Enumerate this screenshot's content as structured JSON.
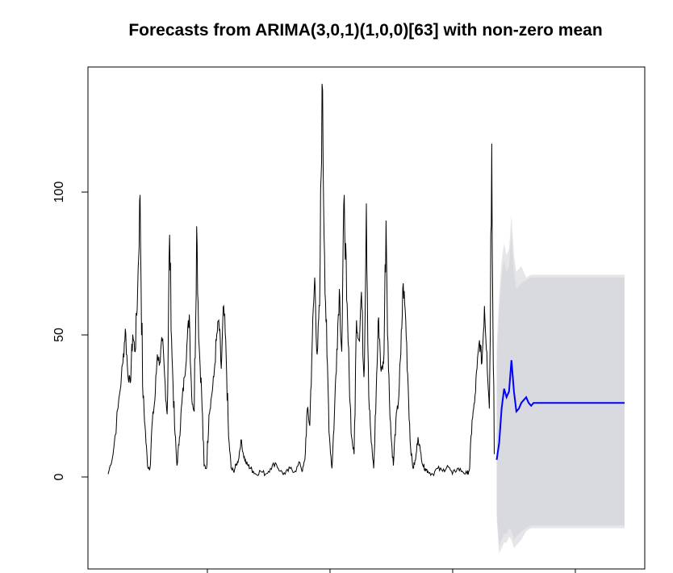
{
  "chart_data": {
    "type": "line",
    "title": "Forecasts from ARIMA(3,0,1)(1,0,0)[63] with non-zero mean",
    "xlabel": "",
    "ylabel": "",
    "ylim": [
      -25,
      140
    ],
    "y_ticks": [
      0,
      50,
      100
    ],
    "y_tick_labels": [
      "0",
      "50",
      "100"
    ],
    "x_tick_count": 4,
    "grid": false,
    "legend": "none",
    "colors": {
      "history": "#000000",
      "forecast": "#0000ff",
      "interval": "#d9dae0",
      "interval_outer": "#e6e6e8"
    },
    "history_series": {
      "name": "",
      "description_points": [
        [
          0,
          1
        ],
        [
          2,
          8
        ],
        [
          4,
          24
        ],
        [
          6,
          40
        ],
        [
          7,
          52
        ],
        [
          8,
          36
        ],
        [
          9,
          33
        ],
        [
          10,
          50
        ],
        [
          11,
          44
        ],
        [
          12,
          66
        ],
        [
          13,
          99
        ],
        [
          14,
          32
        ],
        [
          15,
          18
        ],
        [
          16,
          4
        ],
        [
          17,
          3
        ],
        [
          18,
          20
        ],
        [
          19,
          27
        ],
        [
          20,
          43
        ],
        [
          21,
          40
        ],
        [
          22,
          48
        ],
        [
          23,
          35
        ],
        [
          24,
          22
        ],
        [
          25,
          85
        ],
        [
          26,
          42
        ],
        [
          27,
          18
        ],
        [
          28,
          4
        ],
        [
          29,
          14
        ],
        [
          30,
          26
        ],
        [
          31,
          35
        ],
        [
          32,
          46
        ],
        [
          33,
          57
        ],
        [
          34,
          28
        ],
        [
          35,
          23
        ],
        [
          36,
          88
        ],
        [
          37,
          46
        ],
        [
          38,
          30
        ],
        [
          39,
          4
        ],
        [
          40,
          3
        ],
        [
          41,
          22
        ],
        [
          42,
          28
        ],
        [
          43,
          35
        ],
        [
          44,
          48
        ],
        [
          45,
          55
        ],
        [
          46,
          38
        ],
        [
          47,
          60
        ],
        [
          48,
          42
        ],
        [
          49,
          14
        ],
        [
          50,
          3
        ],
        [
          51,
          2
        ],
        [
          52,
          4
        ],
        [
          53,
          6
        ],
        [
          54,
          13
        ],
        [
          55,
          8
        ],
        [
          56,
          5
        ],
        [
          57,
          4
        ],
        [
          58,
          3
        ],
        [
          59,
          2
        ],
        [
          60,
          1
        ],
        [
          62,
          2
        ],
        [
          64,
          1
        ],
        [
          66,
          3
        ],
        [
          68,
          5
        ],
        [
          70,
          2
        ],
        [
          72,
          1
        ],
        [
          74,
          3
        ],
        [
          76,
          2
        ],
        [
          78,
          5
        ],
        [
          79,
          2
        ],
        [
          80,
          6
        ],
        [
          81,
          24
        ],
        [
          82,
          18
        ],
        [
          83,
          48
        ],
        [
          84,
          70
        ],
        [
          85,
          43
        ],
        [
          86,
          60
        ],
        [
          87,
          138
        ],
        [
          88,
          78
        ],
        [
          89,
          42
        ],
        [
          90,
          14
        ],
        [
          91,
          3
        ],
        [
          92,
          22
        ],
        [
          93,
          45
        ],
        [
          94,
          66
        ],
        [
          95,
          44
        ],
        [
          96,
          99
        ],
        [
          97,
          62
        ],
        [
          98,
          36
        ],
        [
          99,
          14
        ],
        [
          100,
          8
        ],
        [
          101,
          55
        ],
        [
          102,
          48
        ],
        [
          103,
          65
        ],
        [
          104,
          35
        ],
        [
          105,
          96
        ],
        [
          106,
          28
        ],
        [
          107,
          12
        ],
        [
          108,
          3
        ],
        [
          109,
          30
        ],
        [
          110,
          56
        ],
        [
          111,
          37
        ],
        [
          112,
          40
        ],
        [
          113,
          90
        ],
        [
          114,
          38
        ],
        [
          115,
          15
        ],
        [
          116,
          4
        ],
        [
          117,
          20
        ],
        [
          118,
          26
        ],
        [
          119,
          43
        ],
        [
          120,
          68
        ],
        [
          121,
          55
        ],
        [
          122,
          32
        ],
        [
          123,
          10
        ],
        [
          124,
          3
        ],
        [
          125,
          6
        ],
        [
          126,
          14
        ],
        [
          127,
          9
        ],
        [
          128,
          4
        ],
        [
          129,
          3
        ],
        [
          130,
          2
        ],
        [
          132,
          1
        ],
        [
          134,
          3
        ],
        [
          136,
          2
        ],
        [
          138,
          4
        ],
        [
          140,
          1
        ],
        [
          142,
          3
        ],
        [
          144,
          2
        ],
        [
          146,
          1
        ],
        [
          147,
          3
        ],
        [
          148,
          20
        ],
        [
          149,
          26
        ],
        [
          150,
          38
        ],
        [
          151,
          48
        ],
        [
          152,
          40
        ],
        [
          153,
          60
        ],
        [
          154,
          44
        ],
        [
          155,
          24
        ],
        [
          156,
          117
        ],
        [
          157,
          8
        ]
      ]
    },
    "forecast_series": {
      "name": "",
      "points": [
        [
          158,
          6
        ],
        [
          159,
          12
        ],
        [
          160,
          24
        ],
        [
          161,
          31
        ],
        [
          162,
          28
        ],
        [
          163,
          30
        ],
        [
          164,
          41
        ],
        [
          165,
          30
        ],
        [
          166,
          23
        ],
        [
          167,
          24
        ],
        [
          168,
          26
        ],
        [
          169,
          27
        ],
        [
          170,
          28
        ],
        [
          171,
          26
        ],
        [
          172,
          25
        ],
        [
          173,
          26
        ],
        [
          175,
          26
        ],
        [
          180,
          26
        ],
        [
          190,
          26
        ],
        [
          200,
          26
        ],
        [
          210,
          26
        ]
      ]
    },
    "interval_band": {
      "upper": [
        [
          158,
          40
        ],
        [
          159,
          58
        ],
        [
          160,
          70
        ],
        [
          161,
          76
        ],
        [
          162,
          72
        ],
        [
          163,
          74
        ],
        [
          164,
          86
        ],
        [
          165,
          72
        ],
        [
          166,
          66
        ],
        [
          167,
          67
        ],
        [
          168,
          68
        ],
        [
          170,
          69
        ],
        [
          172,
          70
        ],
        [
          175,
          70
        ],
        [
          180,
          70
        ],
        [
          190,
          70
        ],
        [
          200,
          70
        ],
        [
          210,
          70
        ]
      ],
      "lower": [
        [
          158,
          -12
        ],
        [
          159,
          -24
        ],
        [
          160,
          -22
        ],
        [
          161,
          -20
        ],
        [
          162,
          -20
        ],
        [
          163,
          -18
        ],
        [
          164,
          -19
        ],
        [
          165,
          -22
        ],
        [
          166,
          -21
        ],
        [
          167,
          -20
        ],
        [
          168,
          -19
        ],
        [
          170,
          -18
        ],
        [
          172,
          -17
        ],
        [
          175,
          -17
        ],
        [
          180,
          -17
        ],
        [
          190,
          -17
        ],
        [
          200,
          -17
        ],
        [
          210,
          -17
        ]
      ]
    }
  }
}
